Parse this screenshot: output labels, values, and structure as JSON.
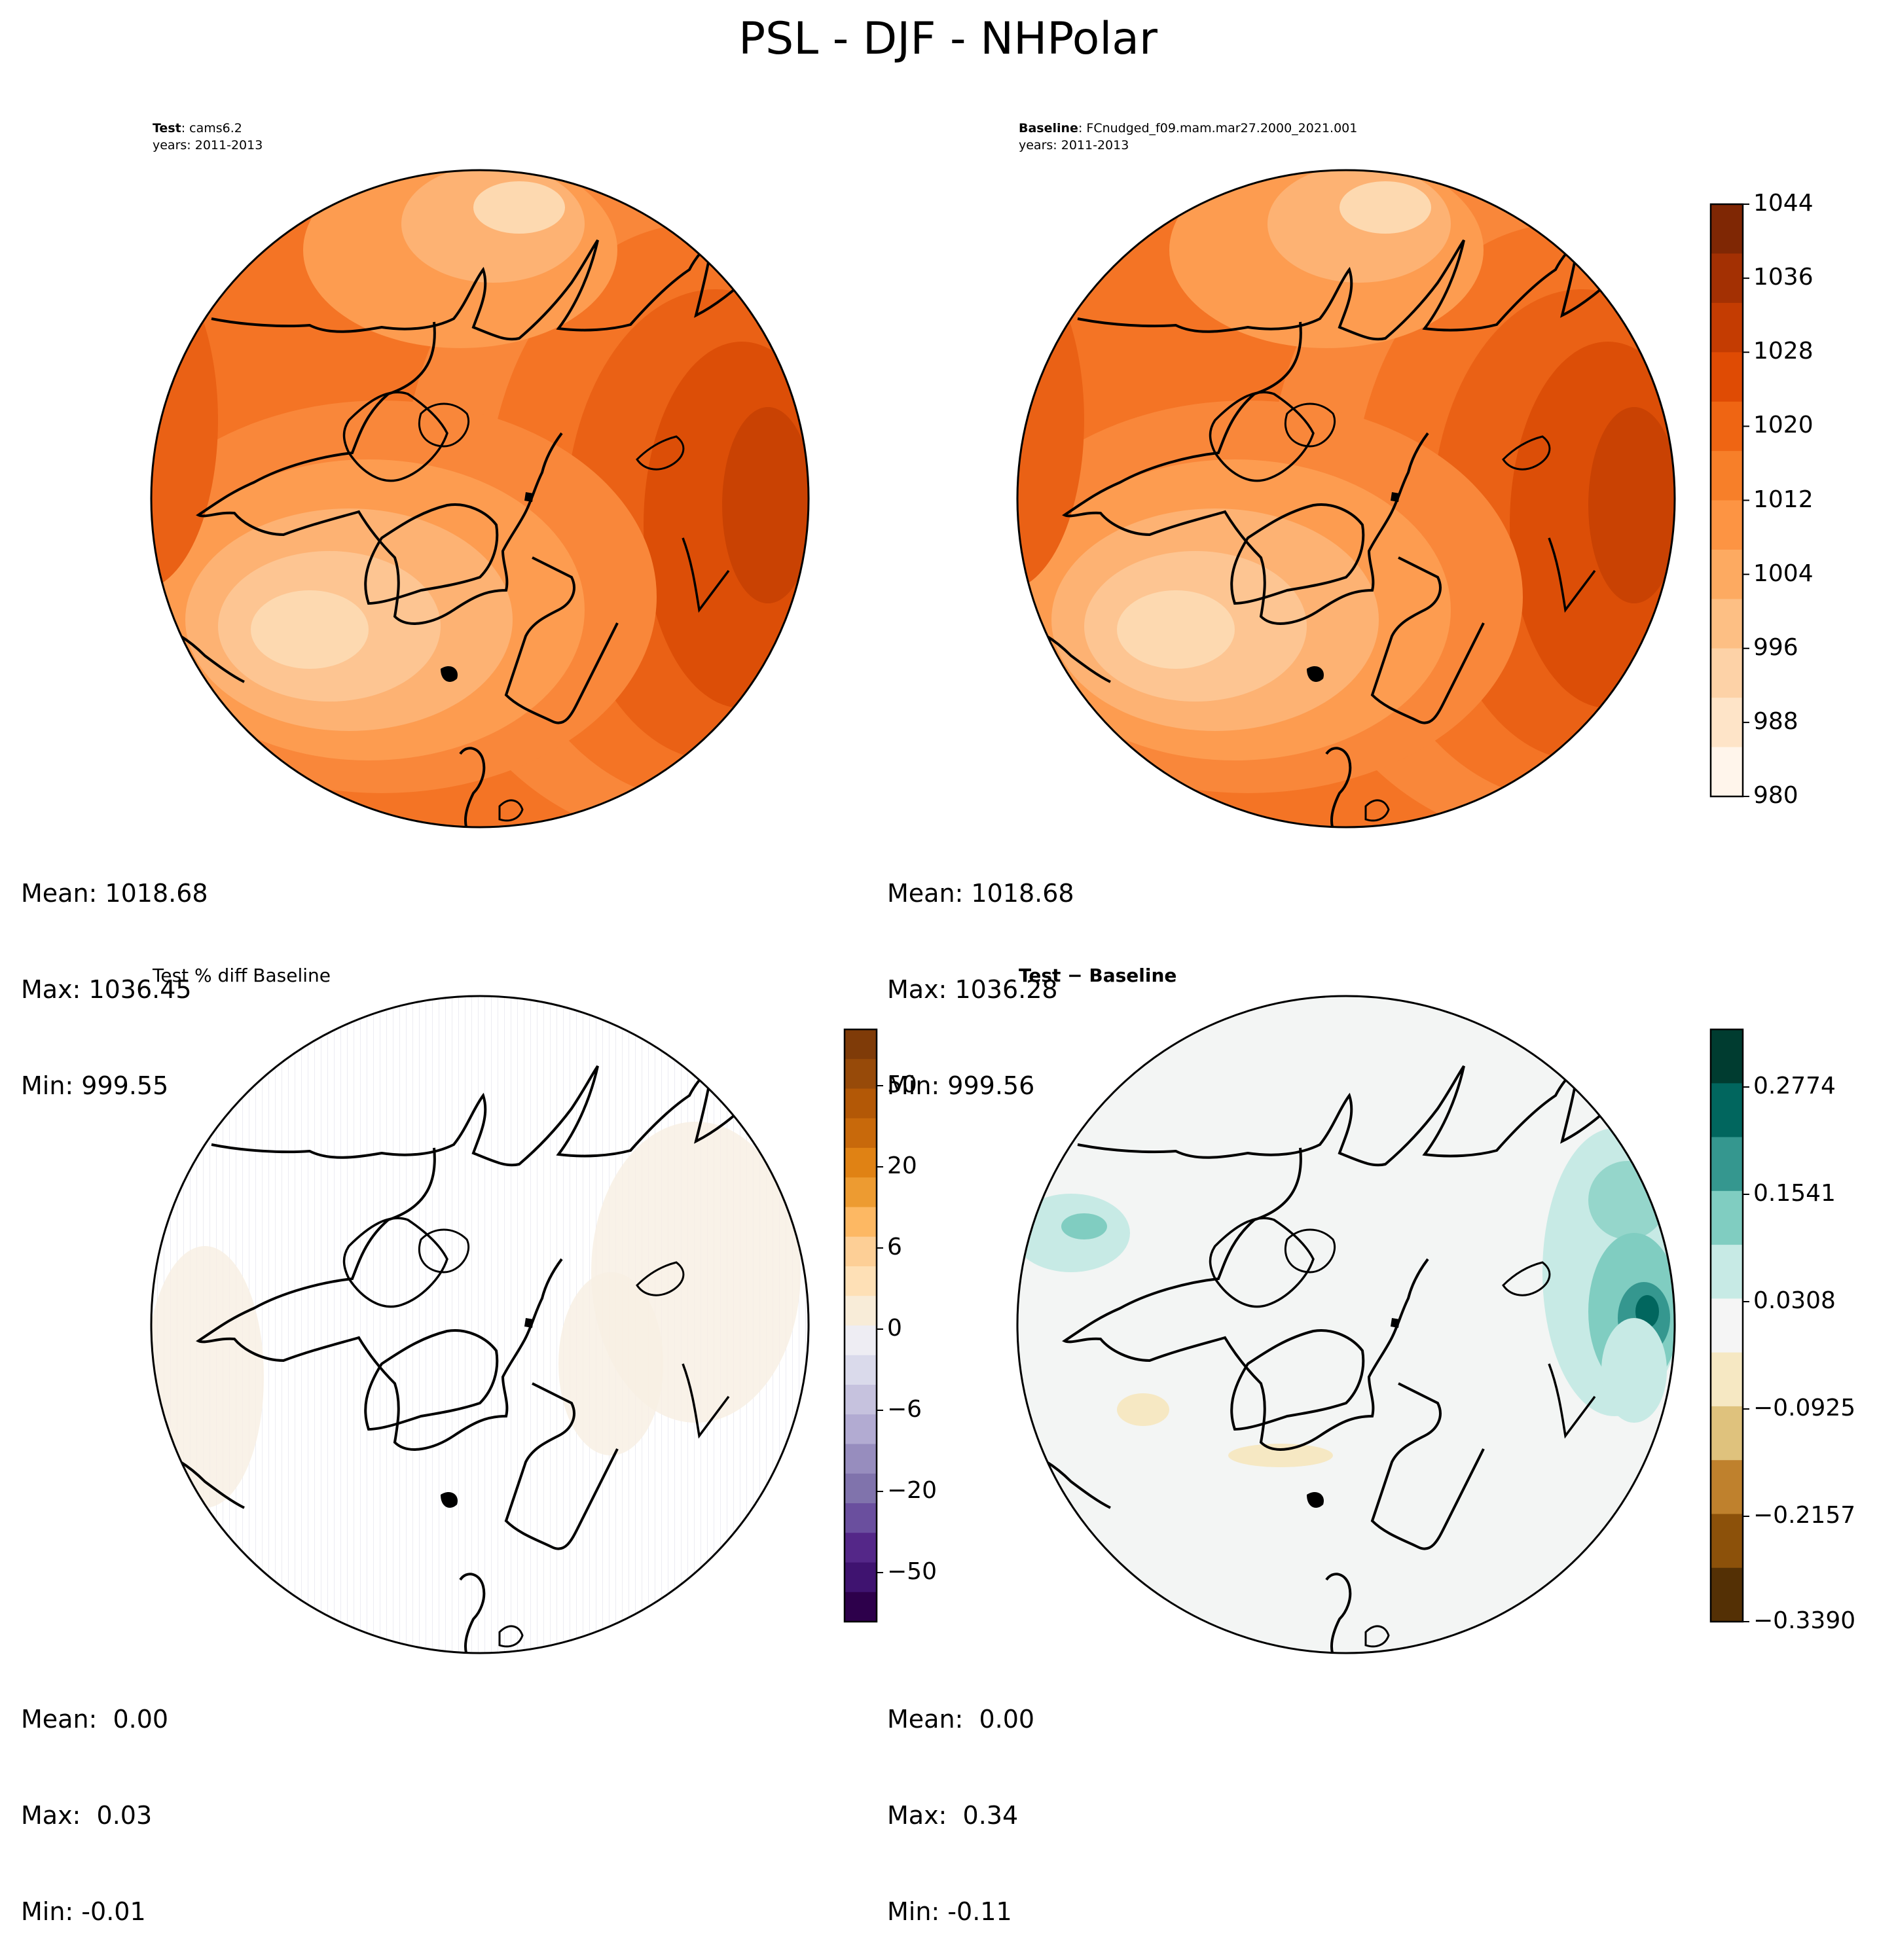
{
  "title": "PSL - DJF - NHPolar",
  "panels": [
    {
      "id": "test",
      "label": "Test",
      "sep": ": ",
      "case": "cams6.2",
      "years": "years: 2011-2013",
      "stats": {
        "mean": "Mean: 1018.68",
        "max": "Max: 1036.45",
        "min": "Min: 999.55"
      }
    },
    {
      "id": "baseline",
      "label": "Baseline",
      "sep": ": ",
      "case": "FCnudged_f09.mam.mar27.2000_2021.001",
      "years": "years: 2011-2013",
      "stats": {
        "mean": "Mean: 1018.68",
        "max": "Max: 1036.28",
        "min": "Min: 999.56"
      }
    },
    {
      "id": "pctdiff",
      "label": "Test % diff Baseline",
      "stats": {
        "mean": "Mean:  0.00",
        "max": "Max:  0.03",
        "min": "Min: -0.01"
      }
    },
    {
      "id": "diff",
      "label": "Test − Baseline",
      "stats": {
        "mean": "Mean:  0.00",
        "max": "Max:  0.34",
        "min": "Min: -0.11"
      }
    }
  ],
  "colorbars": {
    "main": {
      "labels": [
        "1044",
        "1036",
        "1028",
        "1020",
        "1012",
        "1004",
        "996",
        "988",
        "980"
      ],
      "colors": [
        "#7f2704",
        "#a33003",
        "#c43c02",
        "#df4b04",
        "#ef6513",
        "#f77f29",
        "#fd9443",
        "#fdaa61",
        "#fdbf84",
        "#fdd2a7",
        "#fee4c8",
        "#fff5eb"
      ]
    },
    "pct": {
      "labels": [
        "50",
        "20",
        "6",
        "0",
        "−6",
        "−20",
        "−50"
      ],
      "colors": [
        "#7f3b08",
        "#974a09",
        "#b35806",
        "#c8690b",
        "#e08214",
        "#ed9b31",
        "#fdb863",
        "#fdcf96",
        "#fee0b6",
        "#f8ecd8",
        "#eeedf3",
        "#dadaeb",
        "#c6c2de",
        "#b2abd2",
        "#978dbe",
        "#8073ac",
        "#6a4f9e",
        "#542788",
        "#3f1370",
        "#2d004b"
      ]
    },
    "diff": {
      "labels": [
        "0.2774",
        "0.1541",
        "0.0308",
        "−0.0925",
        "−0.2157",
        "−0.3390"
      ],
      "colors": [
        "#003c30",
        "#01665e",
        "#35978f",
        "#80cdc1",
        "#c7eae5",
        "#f5f5f5",
        "#f6e8c3",
        "#dfc27d",
        "#bf812d",
        "#8c510a",
        "#543005"
      ]
    }
  },
  "map_colors": {
    "field_levels": [
      "#fdd9b0",
      "#fdc592",
      "#fdb273",
      "#fd9c50",
      "#f9873a",
      "#f47425",
      "#ea6115",
      "#dc4e07",
      "#c94203"
    ],
    "diff_background": "#f3f5f4",
    "diff_positive": [
      "#c7eae5",
      "#80cdc1",
      "#35978f",
      "#01665e"
    ],
    "diff_negative": [
      "#f6e8c3"
    ],
    "pct_tint": "#f7efe2"
  }
}
